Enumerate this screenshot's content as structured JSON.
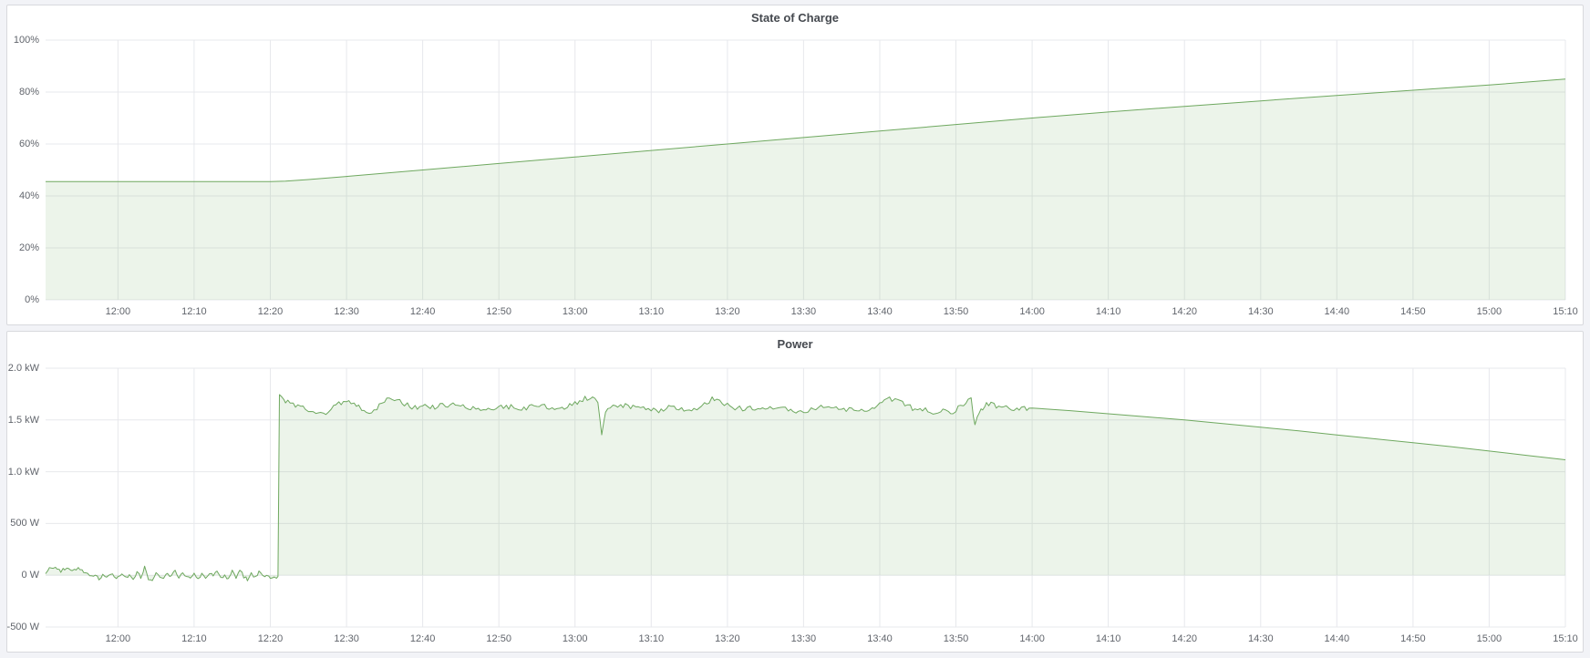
{
  "page": {
    "background": "#f2f3f7",
    "panel_border": "#d8d9dd",
    "grid_color": "#e7e8ec",
    "tick_color": "#61656c",
    "title_color": "#45494f"
  },
  "panels": [
    {
      "title": "State of Charge"
    },
    {
      "title": "Power"
    }
  ],
  "chart_data": [
    {
      "type": "area",
      "title": "State of Charge",
      "ylabel": "",
      "xlabel": "",
      "unit": "percent",
      "ylim": [
        0,
        100
      ],
      "xlim_minutes_from_1200": [
        -9.5,
        190
      ],
      "grid": true,
      "legend": "none",
      "line_color": "#6ea85f",
      "fill_color": "rgba(110,168,95,0.13)",
      "y_ticks": [
        {
          "v": 0,
          "label": "0%"
        },
        {
          "v": 20,
          "label": "20%"
        },
        {
          "v": 40,
          "label": "40%"
        },
        {
          "v": 60,
          "label": "60%"
        },
        {
          "v": 80,
          "label": "80%"
        },
        {
          "v": 100,
          "label": "100%"
        }
      ],
      "x_ticks": [
        {
          "t": 0,
          "label": "12:00"
        },
        {
          "t": 10,
          "label": "12:10"
        },
        {
          "t": 20,
          "label": "12:20"
        },
        {
          "t": 30,
          "label": "12:30"
        },
        {
          "t": 40,
          "label": "12:40"
        },
        {
          "t": 50,
          "label": "12:50"
        },
        {
          "t": 60,
          "label": "13:00"
        },
        {
          "t": 70,
          "label": "13:10"
        },
        {
          "t": 80,
          "label": "13:20"
        },
        {
          "t": 90,
          "label": "13:30"
        },
        {
          "t": 100,
          "label": "13:40"
        },
        {
          "t": 110,
          "label": "13:50"
        },
        {
          "t": 120,
          "label": "14:00"
        },
        {
          "t": 130,
          "label": "14:10"
        },
        {
          "t": 140,
          "label": "14:20"
        },
        {
          "t": 150,
          "label": "14:30"
        },
        {
          "t": 160,
          "label": "14:40"
        },
        {
          "t": 170,
          "label": "14:50"
        },
        {
          "t": 180,
          "label": "15:00"
        },
        {
          "t": 190,
          "label": "15:10"
        }
      ],
      "points": [
        [
          -9.5,
          45.5
        ],
        [
          0,
          45.5
        ],
        [
          10,
          45.5
        ],
        [
          18,
          45.5
        ],
        [
          20,
          45.5
        ],
        [
          22,
          45.7
        ],
        [
          25,
          46.3
        ],
        [
          30,
          47.5
        ],
        [
          40,
          50.0
        ],
        [
          50,
          52.5
        ],
        [
          60,
          55.0
        ],
        [
          70,
          57.5
        ],
        [
          80,
          60.0
        ],
        [
          90,
          62.5
        ],
        [
          100,
          65.0
        ],
        [
          110,
          67.5
        ],
        [
          120,
          70.0
        ],
        [
          130,
          72.3
        ],
        [
          140,
          74.5
        ],
        [
          150,
          76.6
        ],
        [
          160,
          78.7
        ],
        [
          170,
          80.7
        ],
        [
          180,
          82.7
        ],
        [
          190,
          85.0
        ]
      ]
    },
    {
      "type": "area",
      "title": "Power",
      "ylabel": "",
      "xlabel": "",
      "unit": "watt",
      "ylim": [
        -500,
        2000
      ],
      "xlim_minutes_from_1200": [
        -9.5,
        190
      ],
      "grid": true,
      "legend": "none",
      "line_color": "#6ea85f",
      "fill_color": "rgba(110,168,95,0.13)",
      "baseline": 0,
      "jitter": {
        "step": 0.3,
        "seed": 12.9898,
        "ranges": [
          {
            "from": -9.5,
            "to": 21,
            "amp": 18
          },
          {
            "from": 21.4,
            "to": 119.5,
            "amp": 26
          }
        ]
      },
      "y_ticks": [
        {
          "v": -500,
          "label": "-500 W"
        },
        {
          "v": 0,
          "label": "0 W"
        },
        {
          "v": 500,
          "label": "500 W"
        },
        {
          "v": 1000,
          "label": "1.0 kW"
        },
        {
          "v": 1500,
          "label": "1.5 kW"
        },
        {
          "v": 2000,
          "label": "2.0 kW"
        }
      ],
      "x_ticks": [
        {
          "t": 0,
          "label": "12:00"
        },
        {
          "t": 10,
          "label": "12:10"
        },
        {
          "t": 20,
          "label": "12:20"
        },
        {
          "t": 30,
          "label": "12:30"
        },
        {
          "t": 40,
          "label": "12:40"
        },
        {
          "t": 50,
          "label": "12:50"
        },
        {
          "t": 60,
          "label": "13:00"
        },
        {
          "t": 70,
          "label": "13:10"
        },
        {
          "t": 80,
          "label": "13:20"
        },
        {
          "t": 90,
          "label": "13:30"
        },
        {
          "t": 100,
          "label": "13:40"
        },
        {
          "t": 110,
          "label": "13:50"
        },
        {
          "t": 120,
          "label": "14:00"
        },
        {
          "t": 130,
          "label": "14:10"
        },
        {
          "t": 140,
          "label": "14:20"
        },
        {
          "t": 150,
          "label": "14:30"
        },
        {
          "t": 160,
          "label": "14:40"
        },
        {
          "t": 170,
          "label": "14:50"
        },
        {
          "t": 180,
          "label": "15:00"
        },
        {
          "t": 190,
          "label": "15:10"
        }
      ],
      "points": [
        [
          -9.5,
          20
        ],
        [
          -9,
          65
        ],
        [
          -8.5,
          50
        ],
        [
          -8,
          70
        ],
        [
          -7.5,
          45
        ],
        [
          -7,
          62
        ],
        [
          -6.5,
          70
        ],
        [
          -6,
          42
        ],
        [
          -5.5,
          58
        ],
        [
          -5,
          66
        ],
        [
          -4.5,
          30
        ],
        [
          -4,
          12
        ],
        [
          -3.5,
          -18
        ],
        [
          -3,
          6
        ],
        [
          -2.5,
          -28
        ],
        [
          -2,
          -8
        ],
        [
          -1.5,
          -32
        ],
        [
          -1,
          12
        ],
        [
          -0.5,
          -14
        ],
        [
          0,
          -28
        ],
        [
          0.5,
          22
        ],
        [
          1,
          -24
        ],
        [
          1.5,
          -4
        ],
        [
          2,
          -38
        ],
        [
          2.5,
          30
        ],
        [
          3,
          -18
        ],
        [
          3.5,
          78
        ],
        [
          4,
          -28
        ],
        [
          4.5,
          -55
        ],
        [
          5,
          40
        ],
        [
          5.5,
          -10
        ],
        [
          6,
          -30
        ],
        [
          6.5,
          12
        ],
        [
          7,
          -22
        ],
        [
          7.5,
          58
        ],
        [
          8,
          -38
        ],
        [
          8.5,
          20
        ],
        [
          9,
          -12
        ],
        [
          9.5,
          -30
        ],
        [
          10,
          16
        ],
        [
          10.5,
          -26
        ],
        [
          11,
          6
        ],
        [
          11.5,
          -34
        ],
        [
          12,
          26
        ],
        [
          12.5,
          -14
        ],
        [
          13,
          46
        ],
        [
          13.5,
          -30
        ],
        [
          14,
          10
        ],
        [
          14.5,
          -48
        ],
        [
          15,
          32
        ],
        [
          15.5,
          -20
        ],
        [
          16,
          58
        ],
        [
          16.5,
          -12
        ],
        [
          17,
          -38
        ],
        [
          17.5,
          20
        ],
        [
          18,
          -26
        ],
        [
          18.5,
          34
        ],
        [
          19,
          -16
        ],
        [
          19.5,
          -6
        ],
        [
          20,
          -18
        ],
        [
          20.5,
          -12
        ],
        [
          21,
          -15
        ],
        [
          21.2,
          1745
        ],
        [
          22,
          1690
        ],
        [
          23,
          1655
        ],
        [
          24,
          1635
        ],
        [
          25,
          1595
        ],
        [
          26,
          1565
        ],
        [
          27,
          1555
        ],
        [
          28,
          1610
        ],
        [
          29,
          1655
        ],
        [
          30,
          1685
        ],
        [
          31,
          1660
        ],
        [
          32,
          1598
        ],
        [
          33,
          1560
        ],
        [
          34,
          1622
        ],
        [
          35,
          1682
        ],
        [
          36,
          1702
        ],
        [
          37,
          1678
        ],
        [
          38,
          1648
        ],
        [
          39,
          1618
        ],
        [
          40,
          1640
        ],
        [
          41,
          1612
        ],
        [
          42,
          1632
        ],
        [
          43,
          1652
        ],
        [
          44,
          1640
        ],
        [
          45,
          1652
        ],
        [
          46,
          1620
        ],
        [
          47,
          1598
        ],
        [
          48,
          1622
        ],
        [
          49,
          1600
        ],
        [
          50,
          1612
        ],
        [
          51,
          1632
        ],
        [
          52,
          1618
        ],
        [
          53,
          1600
        ],
        [
          54,
          1630
        ],
        [
          55,
          1612
        ],
        [
          56,
          1640
        ],
        [
          57,
          1620
        ],
        [
          58,
          1600
        ],
        [
          59,
          1632
        ],
        [
          60,
          1652
        ],
        [
          61,
          1700
        ],
        [
          62,
          1722
        ],
        [
          63,
          1675
        ],
        [
          63.5,
          1380
        ],
        [
          64,
          1592
        ],
        [
          65,
          1622
        ],
        [
          66,
          1642
        ],
        [
          67,
          1630
        ],
        [
          68,
          1612
        ],
        [
          69,
          1622
        ],
        [
          70,
          1600
        ],
        [
          71,
          1592
        ],
        [
          72,
          1612
        ],
        [
          73,
          1632
        ],
        [
          74,
          1600
        ],
        [
          75,
          1582
        ],
        [
          76,
          1622
        ],
        [
          77,
          1662
        ],
        [
          78,
          1700
        ],
        [
          79,
          1678
        ],
        [
          80,
          1640
        ],
        [
          81,
          1622
        ],
        [
          82,
          1612
        ],
        [
          83,
          1632
        ],
        [
          84,
          1600
        ],
        [
          85,
          1592
        ],
        [
          86,
          1622
        ],
        [
          87,
          1642
        ],
        [
          88,
          1612
        ],
        [
          89,
          1592
        ],
        [
          90,
          1582
        ],
        [
          91,
          1612
        ],
        [
          92,
          1632
        ],
        [
          93,
          1600
        ],
        [
          94,
          1622
        ],
        [
          95,
          1592
        ],
        [
          96,
          1612
        ],
        [
          97,
          1582
        ],
        [
          98,
          1602
        ],
        [
          99,
          1622
        ],
        [
          100,
          1642
        ],
        [
          101,
          1692
        ],
        [
          102,
          1712
        ],
        [
          103,
          1672
        ],
        [
          104,
          1622
        ],
        [
          105,
          1582
        ],
        [
          106,
          1602
        ],
        [
          107,
          1572
        ],
        [
          108,
          1592
        ],
        [
          109,
          1562
        ],
        [
          110,
          1600
        ],
        [
          111,
          1652
        ],
        [
          112,
          1702
        ],
        [
          112.5,
          1430
        ],
        [
          113,
          1562
        ],
        [
          113.5,
          1602
        ],
        [
          114,
          1652
        ],
        [
          115,
          1642
        ],
        [
          116,
          1632
        ],
        [
          117,
          1618
        ],
        [
          118,
          1602
        ],
        [
          119,
          1612
        ],
        [
          120,
          1615
        ],
        [
          125,
          1590
        ],
        [
          130,
          1560
        ],
        [
          135,
          1530
        ],
        [
          140,
          1500
        ],
        [
          145,
          1465
        ],
        [
          150,
          1430
        ],
        [
          155,
          1395
        ],
        [
          160,
          1355
        ],
        [
          165,
          1318
        ],
        [
          170,
          1280
        ],
        [
          175,
          1242
        ],
        [
          180,
          1200
        ],
        [
          185,
          1158
        ],
        [
          190,
          1115
        ]
      ]
    }
  ]
}
